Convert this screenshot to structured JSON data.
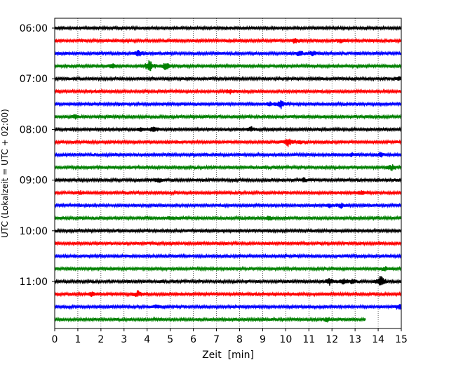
{
  "chart_data": {
    "type": "line",
    "xlabel": "Zeit  [min]",
    "ylabel": "UTC (Lokalzeit = UTC + 02:00)",
    "xlim": [
      0,
      15
    ],
    "x_ticks": [
      0,
      1,
      2,
      3,
      4,
      5,
      6,
      7,
      8,
      9,
      10,
      11,
      12,
      13,
      14,
      15
    ],
    "y_tick_labels": [
      "06:00",
      "07:00",
      "08:00",
      "09:00",
      "10:00",
      "11:00"
    ],
    "trace_interval_min": 15,
    "grid": "vertical dotted",
    "color_cycle": [
      "#000000",
      "#ff0000",
      "#0000ff",
      "#008000"
    ],
    "rows": [
      {
        "start": "06:00",
        "x_end": 15,
        "events": []
      },
      {
        "start": "06:15",
        "x_end": 15,
        "events": [
          {
            "x": 10.4,
            "amp": 0.35
          },
          {
            "x": 12.4,
            "amp": 0.25
          }
        ]
      },
      {
        "start": "06:30",
        "x_end": 15,
        "events": [
          {
            "x": 3.6,
            "amp": 0.5
          },
          {
            "x": 10.6,
            "amp": 0.4
          },
          {
            "x": 11.2,
            "amp": 0.3
          }
        ]
      },
      {
        "start": "06:45",
        "x_end": 15,
        "events": [
          {
            "x": 2.5,
            "amp": 0.35
          },
          {
            "x": 4.1,
            "amp": 1.0
          },
          {
            "x": 4.8,
            "amp": 0.6
          }
        ]
      },
      {
        "start": "07:00",
        "x_end": 15,
        "events": [
          {
            "x": 14.9,
            "amp": 0.3
          }
        ]
      },
      {
        "start": "07:15",
        "x_end": 15,
        "events": [
          {
            "x": 7.6,
            "amp": 0.35
          }
        ]
      },
      {
        "start": "07:30",
        "x_end": 15,
        "events": [
          {
            "x": 9.8,
            "amp": 0.55
          },
          {
            "x": 9.3,
            "amp": 0.3
          }
        ]
      },
      {
        "start": "07:45",
        "x_end": 15,
        "events": [
          {
            "x": 0.9,
            "amp": 0.3
          }
        ]
      },
      {
        "start": "08:00",
        "x_end": 15,
        "events": [
          {
            "x": 3.7,
            "amp": 0.3
          },
          {
            "x": 4.3,
            "amp": 0.45
          },
          {
            "x": 8.5,
            "amp": 0.3
          }
        ]
      },
      {
        "start": "08:15",
        "x_end": 15,
        "events": [
          {
            "x": 10.1,
            "amp": 0.7
          },
          {
            "x": 10.6,
            "amp": 0.25
          }
        ]
      },
      {
        "start": "08:30",
        "x_end": 15,
        "events": [
          {
            "x": 12.8,
            "amp": 0.3
          },
          {
            "x": 14.1,
            "amp": 0.35
          }
        ]
      },
      {
        "start": "08:45",
        "x_end": 15,
        "events": [
          {
            "x": 14.6,
            "amp": 0.4
          }
        ]
      },
      {
        "start": "09:00",
        "x_end": 15,
        "events": [
          {
            "x": 4.5,
            "amp": 0.25
          },
          {
            "x": 10.8,
            "amp": 0.25
          }
        ]
      },
      {
        "start": "09:15",
        "x_end": 15,
        "events": [
          {
            "x": 1.1,
            "amp": 0.25
          },
          {
            "x": 13.3,
            "amp": 0.3
          }
        ]
      },
      {
        "start": "09:30",
        "x_end": 15,
        "events": [
          {
            "x": 12.4,
            "amp": 0.35
          },
          {
            "x": 11.9,
            "amp": 0.25
          }
        ]
      },
      {
        "start": "09:45",
        "x_end": 15,
        "events": [
          {
            "x": 9.3,
            "amp": 0.35
          },
          {
            "x": 5.0,
            "amp": 0.2
          }
        ]
      },
      {
        "start": "10:00",
        "x_end": 15,
        "events": []
      },
      {
        "start": "10:15",
        "x_end": 15,
        "events": []
      },
      {
        "start": "10:30",
        "x_end": 15,
        "events": []
      },
      {
        "start": "10:45",
        "x_end": 15,
        "events": [
          {
            "x": 14.3,
            "amp": 0.25
          }
        ]
      },
      {
        "start": "11:00",
        "x_end": 15,
        "events": [
          {
            "x": 14.1,
            "amp": 1.0
          },
          {
            "x": 11.9,
            "amp": 0.55
          },
          {
            "x": 12.5,
            "amp": 0.45
          },
          {
            "x": 12.9,
            "amp": 0.3
          }
        ]
      },
      {
        "start": "11:15",
        "x_end": 15,
        "events": [
          {
            "x": 3.6,
            "amp": 0.5
          },
          {
            "x": 1.6,
            "amp": 0.3
          }
        ]
      },
      {
        "start": "11:30",
        "x_end": 15,
        "events": [
          {
            "x": 14.9,
            "amp": 0.35
          },
          {
            "x": 4.4,
            "amp": 0.25
          }
        ]
      },
      {
        "start": "11:45",
        "x_end": 13.45,
        "events": [
          {
            "x": 11.8,
            "amp": 0.25
          }
        ]
      }
    ]
  }
}
